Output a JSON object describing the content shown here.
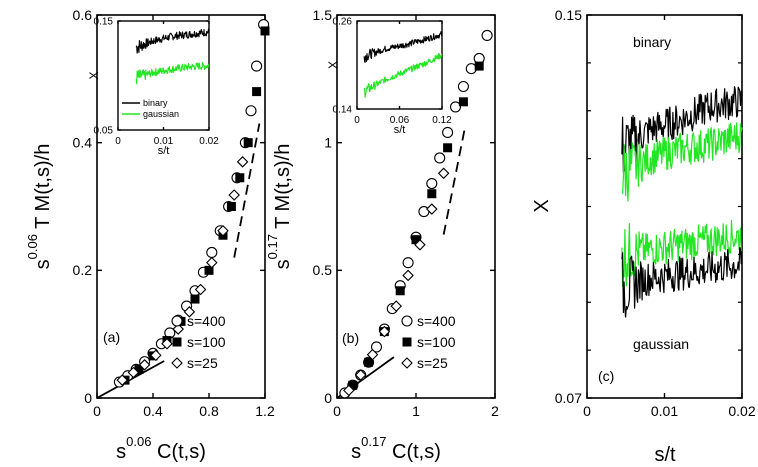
{
  "colors": {
    "black_series": "#000000",
    "green_series": "#22e622",
    "axis": "#000000"
  },
  "chart_data": [
    {
      "type": "scatter",
      "panel_label": "(a)",
      "xlabel": {
        "base": "s",
        "exp": "0.06",
        "rest": " C(t,s)"
      },
      "ylabel": {
        "base": "s",
        "exp": "0.06",
        "rest": " T M(t,s)/h"
      },
      "xlim": [
        0,
        1.2
      ],
      "ylim": [
        0,
        0.6
      ],
      "xticks": [
        0,
        0.4,
        0.8,
        1.2
      ],
      "xtick_labels": [
        "0",
        "0.4",
        "0.8",
        "1.2"
      ],
      "yticks": [
        0,
        0.2,
        0.4,
        0.6
      ],
      "ytick_labels": [
        "0",
        "0.2",
        "0.4",
        "0.6"
      ],
      "legend": [
        "s=400",
        "s=100",
        "s=25"
      ],
      "legend_position": "bottom-right",
      "series": [
        {
          "name": "s=400",
          "marker": "open-circle",
          "x": [
            0.16,
            0.22,
            0.28,
            0.34,
            0.4,
            0.46,
            0.52,
            0.58,
            0.64,
            0.7,
            0.76,
            0.82,
            0.88,
            0.94,
            1.0,
            1.06,
            1.1,
            1.14,
            1.19
          ],
          "y": [
            0.025,
            0.035,
            0.045,
            0.057,
            0.07,
            0.085,
            0.102,
            0.122,
            0.144,
            0.168,
            0.197,
            0.228,
            0.262,
            0.3,
            0.345,
            0.4,
            0.45,
            0.52,
            0.585
          ]
        },
        {
          "name": "s=100",
          "marker": "filled-square",
          "x": [
            0.2,
            0.3,
            0.4,
            0.5,
            0.6,
            0.7,
            0.8,
            0.9,
            0.96,
            1.02,
            1.08,
            1.14,
            1.2
          ],
          "y": [
            0.028,
            0.045,
            0.066,
            0.09,
            0.12,
            0.155,
            0.2,
            0.255,
            0.3,
            0.345,
            0.4,
            0.48,
            0.575
          ]
        },
        {
          "name": "s=25",
          "marker": "open-diamond",
          "x": [
            0.18,
            0.26,
            0.34,
            0.42,
            0.5,
            0.58,
            0.66,
            0.74,
            0.82,
            0.9,
            0.98,
            1.04
          ],
          "y": [
            0.028,
            0.04,
            0.052,
            0.067,
            0.085,
            0.108,
            0.135,
            0.17,
            0.212,
            0.262,
            0.318,
            0.37
          ]
        }
      ],
      "lines": [
        {
          "style": "solid",
          "x": [
            0,
            0.48
          ],
          "y": [
            0,
            0.058
          ]
        },
        {
          "style": "dashed",
          "x": [
            0.98,
            1.16
          ],
          "y": [
            0.22,
            0.43
          ]
        }
      ],
      "inset": {
        "xlabel": "s/t",
        "ylabel": "X",
        "xlim": [
          0,
          0.02
        ],
        "ylim": [
          0.05,
          0.15
        ],
        "xticks": [
          0,
          0.01,
          0.02
        ],
        "xtick_labels": [
          "0",
          "0.01",
          "0.02"
        ],
        "yticks": [
          0.05,
          0.15
        ],
        "ytick_labels": [
          "0.05",
          "0.15"
        ],
        "legend": [
          "binary",
          "gaussian"
        ],
        "legend_position": "bottom-right",
        "series": [
          {
            "name": "binary",
            "color": "#000000",
            "x": [
              0.004,
              0.008,
              0.012,
              0.016,
              0.02
            ],
            "y": [
              0.126,
              0.132,
              0.136,
              0.138,
              0.14
            ]
          },
          {
            "name": "gaussian",
            "color": "#22e622",
            "x": [
              0.004,
              0.008,
              0.012,
              0.016,
              0.02
            ],
            "y": [
              0.098,
              0.103,
              0.106,
              0.108,
              0.109
            ]
          }
        ]
      }
    },
    {
      "type": "scatter",
      "panel_label": "(b)",
      "xlabel": {
        "base": "s",
        "exp": "0.17",
        "rest": " C(t,s)"
      },
      "ylabel": {
        "base": "s",
        "exp": "0.17",
        "rest": " T M(t,s)/h"
      },
      "xlim": [
        0,
        2
      ],
      "ylim": [
        0,
        1.5
      ],
      "xticks": [
        0,
        1,
        2
      ],
      "xtick_labels": [
        "0",
        "1",
        "2"
      ],
      "yticks": [
        0,
        0.5,
        1,
        1.5
      ],
      "ytick_labels": [
        "0",
        "0.5",
        "1",
        "1.5"
      ],
      "legend": [
        "s=400",
        "s=100",
        "s=25"
      ],
      "legend_position": "bottom-right",
      "series": [
        {
          "name": "s=400",
          "marker": "open-circle",
          "x": [
            0.1,
            0.2,
            0.3,
            0.4,
            0.5,
            0.6,
            0.7,
            0.8,
            0.9,
            1.0,
            1.1,
            1.2,
            1.3,
            1.4,
            1.5,
            1.6,
            1.7,
            1.8,
            1.9
          ],
          "y": [
            0.02,
            0.05,
            0.09,
            0.14,
            0.2,
            0.27,
            0.35,
            0.44,
            0.53,
            0.63,
            0.73,
            0.84,
            0.94,
            1.04,
            1.14,
            1.22,
            1.29,
            1.33,
            1.42
          ]
        },
        {
          "name": "s=100",
          "marker": "filled-square",
          "x": [
            0.2,
            0.4,
            0.6,
            0.8,
            1.0,
            1.2,
            1.4,
            1.6,
            1.8
          ],
          "y": [
            0.05,
            0.14,
            0.26,
            0.42,
            0.62,
            0.8,
            0.98,
            1.16,
            1.3
          ]
        },
        {
          "name": "s=25",
          "marker": "open-diamond",
          "x": [
            0.15,
            0.3,
            0.45,
            0.6,
            0.75,
            0.9,
            1.05,
            1.2,
            1.35
          ],
          "y": [
            0.03,
            0.09,
            0.17,
            0.26,
            0.36,
            0.48,
            0.6,
            0.74,
            0.88
          ]
        }
      ],
      "lines": [
        {
          "style": "solid",
          "x": [
            0,
            0.72
          ],
          "y": [
            0,
            0.16
          ]
        },
        {
          "style": "dashed",
          "x": [
            1.35,
            1.62
          ],
          "y": [
            0.64,
            1.06
          ]
        }
      ],
      "inset": {
        "xlabel": "s/t",
        "ylabel": "X",
        "xlim": [
          0,
          0.12
        ],
        "ylim": [
          0.14,
          0.26
        ],
        "xticks": [
          0,
          0.06,
          0.12
        ],
        "xtick_labels": [
          "0",
          "0.06",
          "0.12"
        ],
        "yticks": [
          0.14,
          0.26
        ],
        "ytick_labels": [
          "0.14",
          "0.26"
        ],
        "series": [
          {
            "name": "binary",
            "color": "#000000",
            "x": [
              0.01,
              0.04,
              0.07,
              0.1,
              0.12
            ],
            "y": [
              0.212,
              0.222,
              0.228,
              0.236,
              0.242
            ]
          },
          {
            "name": "gaussian",
            "color": "#22e622",
            "x": [
              0.01,
              0.04,
              0.07,
              0.1,
              0.12
            ],
            "y": [
              0.164,
              0.18,
              0.192,
              0.204,
              0.214
            ]
          }
        ]
      }
    },
    {
      "type": "line",
      "panel_label": "(c)",
      "xlabel": "s/t",
      "ylabel": "X",
      "xlim": [
        0,
        0.02
      ],
      "ylim": [
        0.07,
        0.15
      ],
      "xticks": [
        0,
        0.01,
        0.02
      ],
      "xtick_labels": [
        "0",
        "0.01",
        "0.02"
      ],
      "yticks": [
        0.07,
        0.15
      ],
      "ytick_labels": [
        "0.07",
        "0.15"
      ],
      "annotations": [
        "binary",
        "gaussian"
      ],
      "series": [
        {
          "name": "binary upper",
          "color": "#000000",
          "x": [
            0.0045,
            0.008,
            0.012,
            0.016,
            0.02
          ],
          "y": [
            0.122,
            0.126,
            0.128,
            0.131,
            0.132
          ]
        },
        {
          "name": "gaussian upper",
          "color": "#22e622",
          "x": [
            0.0045,
            0.008,
            0.012,
            0.016,
            0.02
          ],
          "y": [
            0.117,
            0.12,
            0.122,
            0.123,
            0.125
          ]
        },
        {
          "name": "gaussian lower",
          "color": "#22e622",
          "x": [
            0.0045,
            0.008,
            0.012,
            0.016,
            0.02
          ],
          "y": [
            0.1,
            0.101,
            0.102,
            0.103,
            0.104
          ]
        },
        {
          "name": "binary lower",
          "color": "#000000",
          "x": [
            0.0045,
            0.008,
            0.012,
            0.016,
            0.02
          ],
          "y": [
            0.093,
            0.095,
            0.096,
            0.097,
            0.098
          ]
        }
      ]
    }
  ]
}
